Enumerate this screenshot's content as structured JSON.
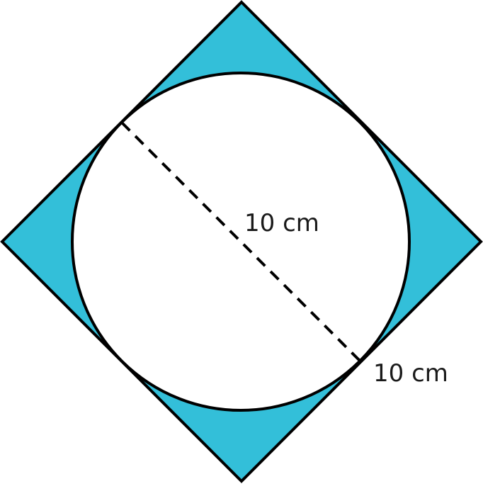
{
  "figure": {
    "shape_fill": "#33bfd9",
    "stroke_color": "#000000",
    "background": "#ffffff"
  },
  "labels": {
    "diameter": "10 cm",
    "side": "10 cm"
  }
}
